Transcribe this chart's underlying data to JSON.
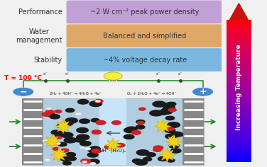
{
  "rows": [
    {
      "label": "Performance",
      "text": "~2 W cm⁻² peak power density",
      "color": "#c0a0d5",
      "text_color": "#333333"
    },
    {
      "label": "Water\nmanagement",
      "text": "Balanced and simplified",
      "color": "#e0a868",
      "text_color": "#333333"
    },
    {
      "label": "Stability",
      "text": "~4% voltage decay rate",
      "color": "#7ab8e0",
      "text_color": "#333333"
    }
  ],
  "arrow_label": "Increasing Temperature",
  "temp_label": "T = 100 °C",
  "background_color": "#f0f0f0",
  "fuel_cell_bg": "#b0cee0",
  "membrane_color": "#c8e4f8",
  "electrode_color": "#888888",
  "wire_color": "#3a9a3a",
  "bulb_color": "#f5ef40",
  "minus_circle_color": "#4488cc",
  "plus_circle_color": "#4488cc",
  "carbon_color": "#1a1a1a",
  "red_dot_color": "#cc2222",
  "white_dot_color": "#f0f0f0",
  "yellow_star_color": "#f0d020",
  "arrow_bottom_color": "#2020b0",
  "arrow_top_color": "#cc1010"
}
